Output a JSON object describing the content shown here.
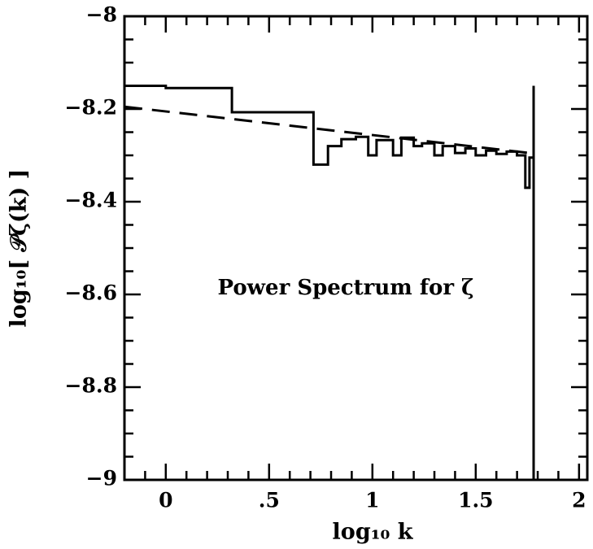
{
  "chart_data": {
    "type": "line",
    "annotation": "Power Spectrum for ζ",
    "xlabel": "log₁₀ k",
    "ylabel": "log₁₀[ 𝒫ζ(k) ]",
    "xlim": [
      -0.2,
      2.04
    ],
    "ylim": [
      -9,
      -8
    ],
    "xticks": [
      0,
      {
        "value": 0.5,
        "label": ".5"
      },
      1,
      1.5,
      2
    ],
    "yticks": [
      {
        "value": -9,
        "label": "−9"
      },
      {
        "value": -8.8,
        "label": "−8.8"
      },
      {
        "value": -8.6,
        "label": "−8.6"
      },
      {
        "value": -8.4,
        "label": "−8.4"
      },
      {
        "value": -8.2,
        "label": "−8.2"
      },
      {
        "value": -8,
        "label": "−8"
      }
    ],
    "xminorticks": [
      -0.1,
      0.1,
      0.2,
      0.3,
      0.4,
      0.6,
      0.7,
      0.8,
      0.9,
      1.1,
      1.2,
      1.3,
      1.4,
      1.6,
      1.7,
      1.8,
      1.9
    ],
    "yminorticks": [
      -8.95,
      -8.9,
      -8.85,
      -8.75,
      -8.7,
      -8.65,
      -8.55,
      -8.5,
      -8.45,
      -8.35,
      -8.3,
      -8.25,
      -8.15,
      -8.1,
      -8.05
    ],
    "series": [
      {
        "color": "#000000",
        "style": "solid",
        "x": [
          -0.2,
          0.0,
          0.0,
          0.32,
          0.32,
          0.715,
          0.715,
          0.785,
          0.785,
          0.85,
          0.85,
          0.92,
          0.92,
          0.98,
          0.98,
          1.02,
          1.02,
          1.1,
          1.1,
          1.14,
          1.14,
          1.2,
          1.2,
          1.24,
          1.24,
          1.3,
          1.3,
          1.34,
          1.34,
          1.4,
          1.4,
          1.45,
          1.45,
          1.5,
          1.5,
          1.55,
          1.55,
          1.6,
          1.6,
          1.65,
          1.65,
          1.7,
          1.7,
          1.74,
          1.74,
          1.76,
          1.76,
          1.78
        ],
        "values": [
          -8.15,
          -8.15,
          -8.155,
          -8.155,
          -8.207,
          -8.207,
          -8.32,
          -8.32,
          -8.28,
          -8.28,
          -8.265,
          -8.265,
          -8.26,
          -8.26,
          -8.3,
          -8.3,
          -8.267,
          -8.267,
          -8.3,
          -8.3,
          -8.262,
          -8.262,
          -8.28,
          -8.28,
          -8.274,
          -8.274,
          -8.3,
          -8.3,
          -8.28,
          -8.28,
          -8.295,
          -8.295,
          -8.285,
          -8.285,
          -8.3,
          -8.3,
          -8.29,
          -8.29,
          -8.297,
          -8.297,
          -8.292,
          -8.292,
          -8.3,
          -8.3,
          -8.37,
          -8.37,
          -8.305,
          -8.305
        ]
      },
      {
        "color": "#000000",
        "style": "solid",
        "x": [
          1.78,
          1.78
        ],
        "values": [
          -8.15,
          -9
        ]
      },
      {
        "color": "#000000",
        "style": "dashed",
        "x": [
          -0.2,
          1.76
        ],
        "values": [
          -8.195,
          -8.295
        ]
      }
    ]
  }
}
